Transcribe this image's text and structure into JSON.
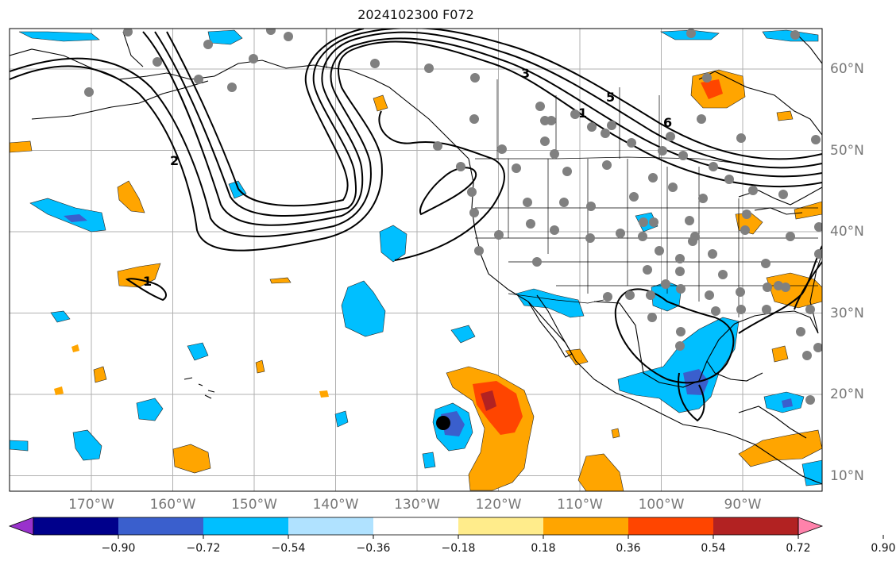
{
  "title": "2024102300 F072",
  "lon_labels": [
    {
      "deg": -170,
      "text": "170°W"
    },
    {
      "deg": -160,
      "text": "160°W"
    },
    {
      "deg": -150,
      "text": "150°W"
    },
    {
      "deg": -140,
      "text": "140°W"
    },
    {
      "deg": -130,
      "text": "130°W"
    },
    {
      "deg": -120,
      "text": "120°W"
    },
    {
      "deg": -110,
      "text": "110°W"
    },
    {
      "deg": -100,
      "text": "100°W"
    },
    {
      "deg": -90,
      "text": "90°W"
    }
  ],
  "lat_labels": [
    {
      "deg": 60,
      "text": "60°N"
    },
    {
      "deg": 50,
      "text": "50°N"
    },
    {
      "deg": 40,
      "text": "40°N"
    },
    {
      "deg": 30,
      "text": "30°N"
    },
    {
      "deg": 20,
      "text": "20°N"
    },
    {
      "deg": 10,
      "text": "10°N"
    }
  ],
  "colorbar": {
    "colors": [
      "#9932cc",
      "#00008b",
      "#3a5fcd",
      "#00bfff",
      "#b0e2ff",
      "#ffffff",
      "#ffec8b",
      "#ffa500",
      "#ff4500",
      "#b22222",
      "#ff82ab"
    ],
    "ticks": [
      "−0.90",
      "−0.72",
      "−0.54",
      "−0.36",
      "−0.18",
      "0.18",
      "0.36",
      "0.54",
      "0.72",
      "0.90"
    ]
  },
  "contour_labels": [
    "3",
    "5",
    "1",
    "6",
    "2",
    "1"
  ],
  "station_marker_color": "#808080",
  "storm_marker_color": "#000000"
}
